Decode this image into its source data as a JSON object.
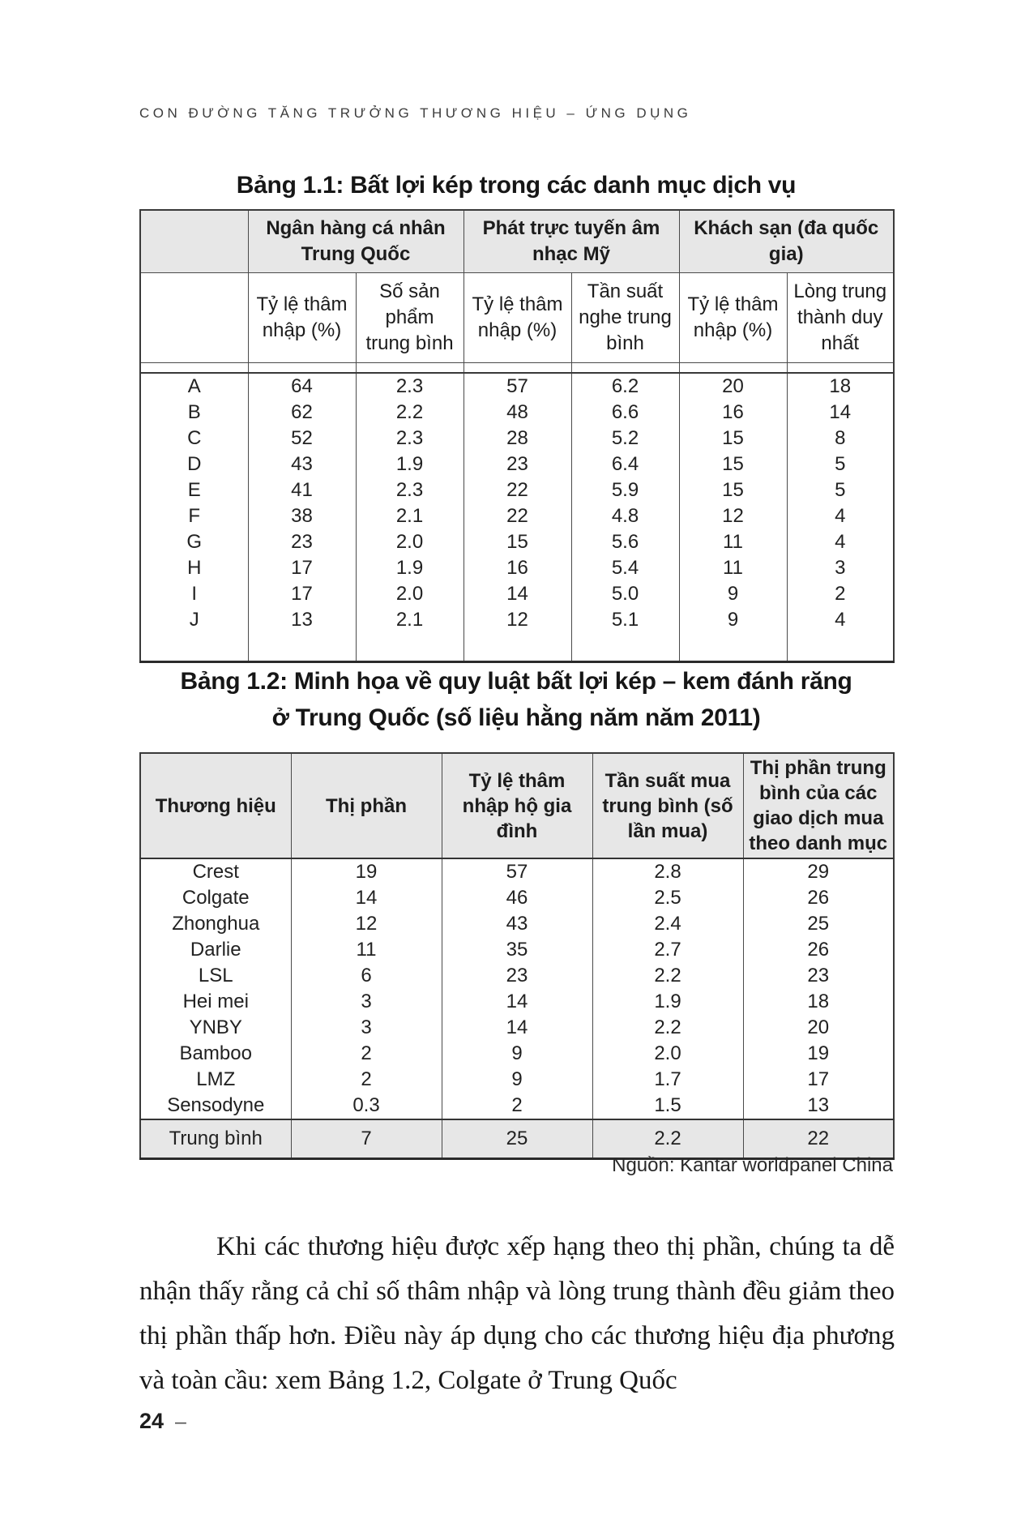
{
  "page": {
    "running_header": "CON ĐƯỜNG TĂNG TRƯỞNG THƯƠNG HIỆU – ỨNG DỤNG",
    "page_number": "24",
    "page_number_dash": "–"
  },
  "table1": {
    "title": "Bảng 1.1: Bất lợi kép trong các danh mục dịch vụ",
    "group_headers": [
      "Ngân hàng cá nhân Trung Quốc",
      "Phát trực tuyến âm nhạc Mỹ",
      "Khách sạn (đa quốc gia)"
    ],
    "sub_headers": [
      "Tỷ lệ thâm nhập (%)",
      "Số sản phẩm trung bình",
      "Tỷ lệ thâm nhập (%)",
      "Tần suất nghe trung bình",
      "Tỷ lệ thâm nhập (%)",
      "Lòng trung thành duy nhất"
    ],
    "rows": [
      {
        "label": "A",
        "values": [
          "64",
          "2.3",
          "57",
          "6.2",
          "20",
          "18"
        ]
      },
      {
        "label": "B",
        "values": [
          "62",
          "2.2",
          "48",
          "6.6",
          "16",
          "14"
        ]
      },
      {
        "label": "C",
        "values": [
          "52",
          "2.3",
          "28",
          "5.2",
          "15",
          "8"
        ]
      },
      {
        "label": "D",
        "values": [
          "43",
          "1.9",
          "23",
          "6.4",
          "15",
          "5"
        ]
      },
      {
        "label": "E",
        "values": [
          "41",
          "2.3",
          "22",
          "5.9",
          "15",
          "5"
        ]
      },
      {
        "label": "F",
        "values": [
          "38",
          "2.1",
          "22",
          "4.8",
          "12",
          "4"
        ]
      },
      {
        "label": "G",
        "values": [
          "23",
          "2.0",
          "15",
          "5.6",
          "11",
          "4"
        ]
      },
      {
        "label": "H",
        "values": [
          "17",
          "1.9",
          "16",
          "5.4",
          "11",
          "3"
        ]
      },
      {
        "label": "I",
        "values": [
          "17",
          "2.0",
          "14",
          "5.0",
          "9",
          "2"
        ]
      },
      {
        "label": "J",
        "values": [
          "13",
          "2.1",
          "12",
          "5.1",
          "9",
          "4"
        ]
      }
    ]
  },
  "table2": {
    "title_line1": "Bảng 1.2: Minh họa về quy luật bất lợi kép – kem đánh răng",
    "title_line2": "ở Trung Quốc (số liệu hằng năm năm 2011)",
    "headers": [
      "Thương hiệu",
      "Thị phần",
      "Tỷ lệ thâm nhập hộ gia đình",
      "Tần suất mua trung bình (số lần mua)",
      "Thị phần trung bình của các giao dịch mua theo danh mục"
    ],
    "rows": [
      [
        "Crest",
        "19",
        "57",
        "2.8",
        "29"
      ],
      [
        "Colgate",
        "14",
        "46",
        "2.5",
        "26"
      ],
      [
        "Zhonghua",
        "12",
        "43",
        "2.4",
        "25"
      ],
      [
        "Darlie",
        "11",
        "35",
        "2.7",
        "26"
      ],
      [
        "LSL",
        "6",
        "23",
        "2.2",
        "23"
      ],
      [
        "Hei mei",
        "3",
        "14",
        "1.9",
        "18"
      ],
      [
        "YNBY",
        "3",
        "14",
        "2.2",
        "20"
      ],
      [
        "Bamboo",
        "2",
        "9",
        "2.0",
        "19"
      ],
      [
        "LMZ",
        "2",
        "9",
        "1.7",
        "17"
      ],
      [
        "Sensodyne",
        "0.3",
        "2",
        "1.5",
        "13"
      ]
    ],
    "summary_row": [
      "Trung bình",
      "7",
      "25",
      "2.2",
      "22"
    ],
    "source": "Nguồn: Kantar worldpanel China"
  },
  "paragraph": "Khi các thương hiệu được xếp hạng theo thị phần, chúng ta dễ nhận thấy rằng cả chỉ số thâm nhập và lòng trung thành đều giảm theo thị phần thấp hơn. Điều này áp dụng cho các thương hiệu địa phương và toàn cầu: xem Bảng 1.2, Colgate ở Trung Quốc"
}
